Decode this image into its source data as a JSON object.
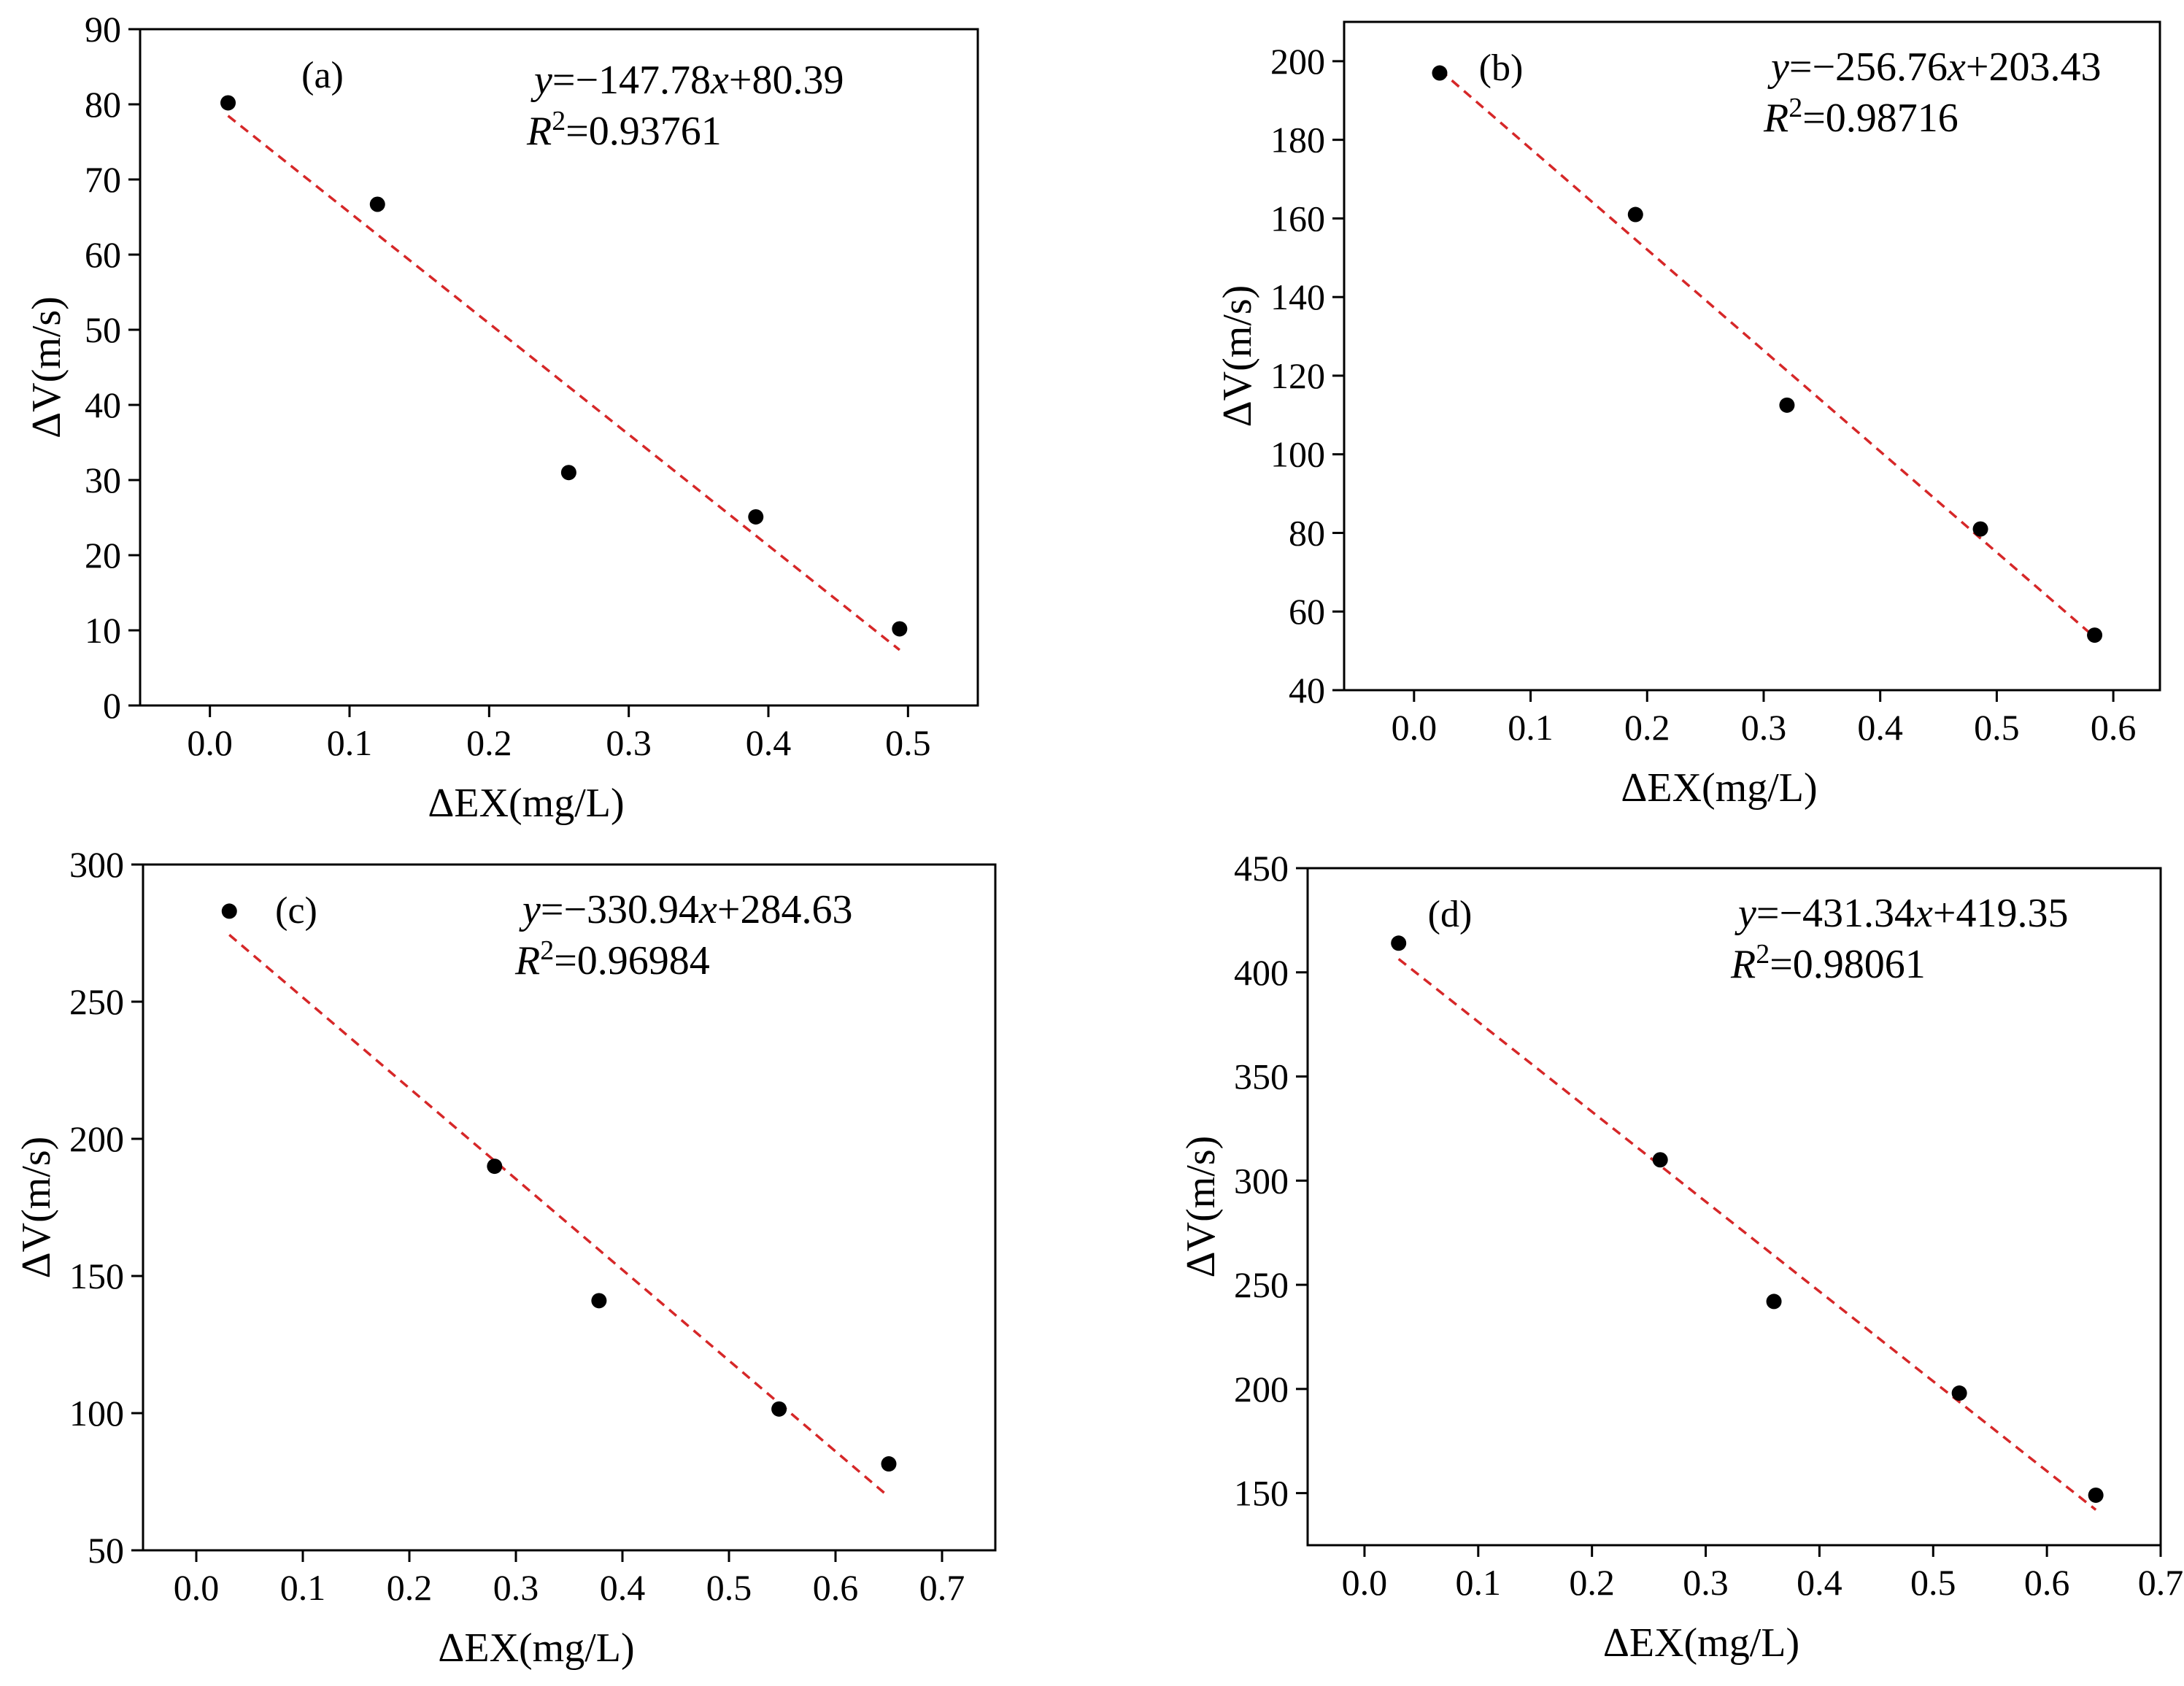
{
  "figure": {
    "colors": {
      "axis": "#000000",
      "point": "#000000",
      "fit_line": "#d62728",
      "background": "#ffffff"
    }
  },
  "chart_data": [
    {
      "id": "a",
      "type": "scatter",
      "panel_label": "(a)",
      "xlabel": "ΔEX(mg/L)",
      "ylabel": "ΔV(m/s)",
      "xlim": [
        -0.05,
        0.55
      ],
      "ylim": [
        0,
        90
      ],
      "xticks": [
        0.0,
        0.1,
        0.2,
        0.3,
        0.4,
        0.5
      ],
      "xtick_labels": [
        "0.0",
        "0.1",
        "0.2",
        "0.3",
        "0.4",
        "0.5"
      ],
      "yticks": [
        0,
        10,
        20,
        30,
        40,
        50,
        60,
        70,
        80,
        90
      ],
      "ytick_labels": [
        "0",
        "10",
        "20",
        "30",
        "40",
        "50",
        "60",
        "70",
        "80",
        "90"
      ],
      "x": [
        0.013,
        0.12,
        0.257,
        0.391,
        0.494
      ],
      "y": [
        80.2,
        66.7,
        31.0,
        25.1,
        10.2
      ],
      "fit": {
        "slope": -147.78,
        "intercept": 80.39,
        "x_range": [
          0.013,
          0.494
        ]
      },
      "equation": {
        "y_var": "y",
        "rhs_a": "=−147.78",
        "x_var": "x",
        "rhs_b": "+80.39",
        "r_var": "R",
        "r_sup": "2",
        "r_rhs": "=0.93761"
      }
    },
    {
      "id": "b",
      "type": "scatter",
      "panel_label": "(b)",
      "xlabel": "ΔEX(mg/L)",
      "ylabel": "ΔV(m/s)",
      "xlim": [
        -0.06,
        0.64
      ],
      "ylim": [
        40,
        210
      ],
      "xticks": [
        0.0,
        0.1,
        0.2,
        0.3,
        0.4,
        0.5,
        0.6
      ],
      "xtick_labels": [
        "0.0",
        "0.1",
        "0.2",
        "0.3",
        "0.4",
        "0.5",
        "0.6"
      ],
      "yticks": [
        40,
        60,
        80,
        100,
        120,
        140,
        160,
        180,
        200
      ],
      "ytick_labels": [
        "40",
        "60",
        "80",
        "100",
        "120",
        "140",
        "160",
        "180",
        "200"
      ],
      "x": [
        0.022,
        0.19,
        0.32,
        0.486,
        0.584
      ],
      "y": [
        197,
        161,
        112.5,
        81,
        54
      ],
      "fit": {
        "slope": -256.76,
        "intercept": 203.43,
        "x_range": [
          0.022,
          0.584
        ]
      },
      "equation": {
        "y_var": "y",
        "rhs_a": "=−256.76",
        "x_var": "x",
        "rhs_b": "+203.43",
        "r_var": "R",
        "r_sup": "2",
        "r_rhs": "=0.98716"
      }
    },
    {
      "id": "c",
      "type": "scatter",
      "panel_label": "(c)",
      "xlabel": "ΔEX(mg/L)",
      "ylabel": "ΔV(m/s)",
      "xlim": [
        -0.05,
        0.75
      ],
      "ylim": [
        50,
        300
      ],
      "xticks": [
        0.0,
        0.1,
        0.2,
        0.3,
        0.4,
        0.5,
        0.6,
        0.7
      ],
      "xtick_labels": [
        "0.0",
        "0.1",
        "0.2",
        "0.3",
        "0.4",
        "0.5",
        "0.6",
        "0.7"
      ],
      "yticks": [
        50,
        100,
        150,
        200,
        250,
        300
      ],
      "ytick_labels": [
        "50",
        "100",
        "150",
        "200",
        "250",
        "300"
      ],
      "x": [
        0.031,
        0.28,
        0.378,
        0.547,
        0.65
      ],
      "y": [
        283,
        190,
        141,
        101.5,
        81.5
      ],
      "fit": {
        "slope": -330.94,
        "intercept": 284.63,
        "x_range": [
          0.031,
          0.65
        ]
      },
      "equation": {
        "y_var": "y",
        "rhs_a": "=−330.94",
        "x_var": "x",
        "rhs_b": "+284.63",
        "r_var": "R",
        "r_sup": "2",
        "r_rhs": "=0.96984"
      }
    },
    {
      "id": "d",
      "type": "scatter",
      "panel_label": "(d)",
      "xlabel": "ΔEX(mg/L)",
      "ylabel": "ΔV(m/s)",
      "xlim": [
        -0.05,
        0.7
      ],
      "ylim": [
        125,
        450
      ],
      "xticks": [
        0.0,
        0.1,
        0.2,
        0.3,
        0.4,
        0.5,
        0.6,
        0.7
      ],
      "xtick_labels": [
        "0.0",
        "0.1",
        "0.2",
        "0.3",
        "0.4",
        "0.5",
        "0.6",
        "0.7"
      ],
      "yticks": [
        150,
        200,
        250,
        300,
        350,
        400,
        450
      ],
      "ytick_labels": [
        "150",
        "200",
        "250",
        "300",
        "350",
        "400",
        "450"
      ],
      "x": [
        0.03,
        0.26,
        0.36,
        0.523,
        0.643
      ],
      "y": [
        414,
        310,
        242,
        198,
        149
      ],
      "fit": {
        "slope": -431.34,
        "intercept": 419.35,
        "x_range": [
          0.03,
          0.643
        ]
      },
      "equation": {
        "y_var": "y",
        "rhs_a": "=−431.34",
        "x_var": "x",
        "rhs_b": "+419.35",
        "r_var": "R",
        "r_sup": "2",
        "r_rhs": "=0.98061"
      }
    }
  ]
}
